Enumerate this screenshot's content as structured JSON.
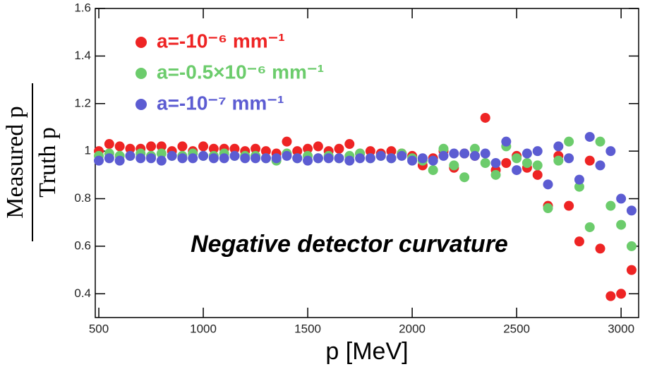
{
  "chart_data": {
    "type": "scatter",
    "annotation": "Negative detector curvature",
    "x_label": "p [MeV]",
    "y_label": {
      "numerator": "Measured p",
      "denominator": "Truth p"
    },
    "x": [
      500,
      550,
      600,
      650,
      700,
      750,
      800,
      850,
      900,
      950,
      1000,
      1050,
      1100,
      1150,
      1200,
      1250,
      1300,
      1350,
      1400,
      1450,
      1500,
      1550,
      1600,
      1650,
      1700,
      1750,
      1800,
      1850,
      1900,
      1950,
      2000,
      2050,
      2100,
      2150,
      2200,
      2250,
      2300,
      2350,
      2400,
      2450,
      2500,
      2550,
      2600,
      2650,
      2700,
      2750,
      2800,
      2850,
      2900,
      2950,
      3000,
      3050
    ],
    "series": [
      {
        "name": "a=-10⁻⁶ mm⁻¹",
        "color": "#ee2424",
        "values": [
          1.0,
          1.03,
          1.02,
          1.01,
          1.01,
          1.02,
          1.02,
          1.0,
          1.02,
          1.0,
          1.02,
          1.01,
          1.01,
          1.01,
          1.0,
          1.01,
          1.0,
          0.99,
          1.04,
          1.0,
          1.01,
          1.02,
          1.0,
          1.01,
          1.03,
          0.99,
          1.0,
          0.99,
          1.0,
          0.99,
          0.98,
          0.94,
          0.97,
          1.0,
          0.93,
          0.99,
          0.98,
          1.14,
          0.92,
          0.95,
          0.98,
          0.93,
          0.9,
          0.77,
          0.98,
          0.77,
          0.62,
          0.96,
          0.59,
          0.39,
          0.4,
          0.5
        ]
      },
      {
        "name": "a=-0.5×10⁻⁶ mm⁻¹",
        "color": "#6ccc6c",
        "values": [
          0.98,
          0.99,
          0.98,
          0.98,
          0.99,
          0.98,
          0.99,
          0.98,
          0.98,
          0.99,
          0.98,
          0.98,
          0.99,
          0.98,
          0.98,
          0.98,
          0.97,
          0.96,
          0.99,
          0.97,
          0.98,
          0.97,
          0.98,
          0.97,
          0.98,
          0.99,
          0.97,
          0.98,
          0.97,
          0.99,
          0.97,
          0.96,
          0.92,
          1.01,
          0.94,
          0.89,
          1.01,
          0.95,
          0.9,
          1.02,
          0.97,
          0.95,
          0.94,
          0.76,
          0.96,
          1.04,
          0.85,
          0.68,
          1.04,
          0.77,
          0.69,
          0.6
        ]
      },
      {
        "name": "a=-10⁻⁷ mm⁻¹",
        "color": "#5c5cd2",
        "values": [
          0.96,
          0.97,
          0.96,
          0.98,
          0.97,
          0.97,
          0.96,
          0.98,
          0.97,
          0.97,
          0.98,
          0.97,
          0.97,
          0.98,
          0.97,
          0.97,
          0.97,
          0.97,
          0.98,
          0.97,
          0.96,
          0.97,
          0.97,
          0.97,
          0.96,
          0.97,
          0.97,
          0.98,
          0.97,
          0.98,
          0.96,
          0.97,
          0.96,
          0.98,
          0.99,
          0.99,
          0.98,
          0.99,
          0.95,
          1.04,
          0.92,
          0.99,
          1.0,
          0.86,
          1.02,
          0.97,
          0.88,
          1.06,
          0.94,
          1.0,
          0.8,
          0.75
        ]
      }
    ],
    "xlim": [
      483,
      3084
    ],
    "ylim": [
      0.3,
      1.6
    ],
    "xticks": [
      500,
      1000,
      1500,
      2000,
      2500,
      3000
    ],
    "yticks": [
      0.4,
      0.6,
      0.8,
      1,
      1.2,
      1.4,
      1.6
    ],
    "legend": "upper left"
  }
}
